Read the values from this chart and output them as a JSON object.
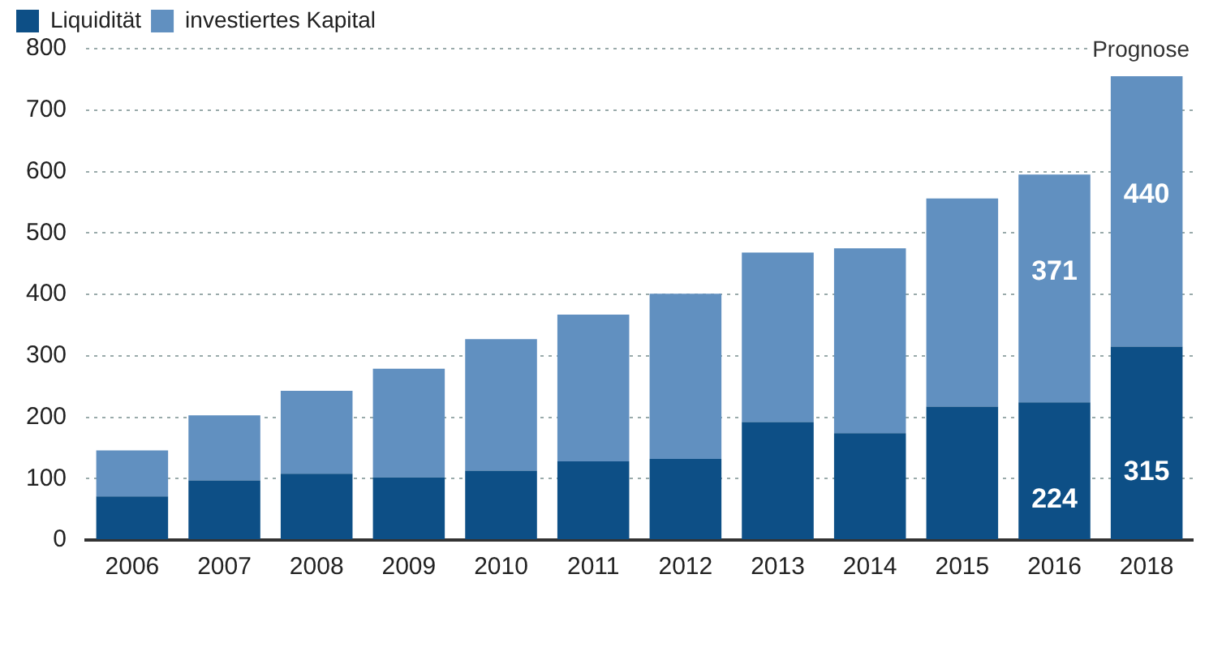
{
  "chart_data": {
    "type": "bar",
    "stacked": true,
    "categories": [
      "2006",
      "2007",
      "2008",
      "2009",
      "2010",
      "2011",
      "2012",
      "2013",
      "2014",
      "2015",
      "2016",
      "2018"
    ],
    "series": [
      {
        "name": "Liquidität",
        "color": "#0d4f86",
        "values": [
          71,
          97,
          108,
          102,
          113,
          128,
          132,
          192,
          174,
          217,
          224,
          315
        ],
        "value_labels": [
          null,
          null,
          null,
          null,
          null,
          null,
          null,
          null,
          null,
          null,
          "224",
          "315"
        ]
      },
      {
        "name": "investiertes Kapital",
        "color": "#6190c0",
        "values": [
          75,
          106,
          135,
          177,
          214,
          239,
          269,
          276,
          301,
          339,
          371,
          440
        ],
        "value_labels": [
          null,
          null,
          null,
          null,
          null,
          null,
          null,
          null,
          null,
          null,
          "371",
          "440"
        ]
      }
    ],
    "ylim": [
      0,
      800
    ],
    "yticks": [
      0,
      100,
      200,
      300,
      400,
      500,
      600,
      700,
      800
    ],
    "grid": "y",
    "legend": "top left",
    "annotations": [
      "Prognose"
    ]
  }
}
